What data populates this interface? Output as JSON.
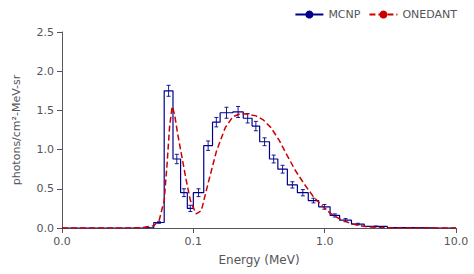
{
  "chart_data": {
    "type": "line",
    "xlabel": "Energy (MeV)",
    "ylabel": "photons/cm²-MeV-sr",
    "log": "x",
    "xlim": [
      0.01,
      10.0
    ],
    "ylim": [
      0.0,
      2.5
    ],
    "xticks": [
      {
        "value": 0.01,
        "label": "0.0"
      },
      0.1,
      {
        "value": 1.0,
        "label": "1.0"
      },
      {
        "value": 10.0,
        "label": "10.0"
      }
    ],
    "yticks": [
      {
        "value": 0.0,
        "label": "0.0"
      },
      0.5,
      {
        "value": 1.0,
        "label": "1.0"
      },
      1.5,
      {
        "value": 2.0,
        "label": "2.0"
      },
      2.5
    ],
    "grid": false,
    "legend": "upper right",
    "series": [
      {
        "name": "MCNP",
        "type": "histogram",
        "color": "#00008B",
        "line_style": "solid",
        "bins": [
          0.01,
          0.02,
          0.03,
          0.04,
          0.05,
          0.06,
          0.07,
          0.08,
          0.09,
          0.1,
          0.12,
          0.14,
          0.16,
          0.2,
          0.24,
          0.28,
          0.32,
          0.38,
          0.44,
          0.52,
          0.62,
          0.75,
          0.9,
          1.1,
          1.3,
          1.6,
          2.0,
          3.0,
          5.0,
          7.0,
          10.0
        ],
        "values": [
          0.0,
          0.0,
          0.0,
          0.005,
          0.07,
          1.75,
          0.88,
          0.45,
          0.25,
          0.45,
          1.05,
          1.35,
          1.47,
          1.48,
          1.4,
          1.3,
          1.1,
          0.88,
          0.75,
          0.55,
          0.45,
          0.35,
          0.27,
          0.16,
          0.1,
          0.05,
          0.02,
          0.005,
          0.001,
          0.0
        ],
        "yerr": [
          0.0,
          0.0,
          0.0,
          0.003,
          0.01,
          0.07,
          0.06,
          0.05,
          0.04,
          0.05,
          0.06,
          0.06,
          0.07,
          0.07,
          0.06,
          0.06,
          0.05,
          0.05,
          0.05,
          0.04,
          0.04,
          0.03,
          0.03,
          0.02,
          0.02,
          0.01,
          0.005,
          0.002,
          0.001,
          0.0
        ]
      },
      {
        "name": "ONEDANT",
        "type": "line",
        "color": "#CC0000",
        "line_style": "dashed",
        "x": [
          0.01,
          0.02,
          0.03,
          0.04,
          0.05,
          0.055,
          0.06,
          0.063,
          0.066,
          0.069,
          0.072,
          0.076,
          0.082,
          0.088,
          0.095,
          0.105,
          0.115,
          0.13,
          0.15,
          0.175,
          0.2,
          0.23,
          0.26,
          0.3,
          0.34,
          0.39,
          0.45,
          0.52,
          0.6,
          0.7,
          0.82,
          0.96,
          1.1,
          1.3,
          1.55,
          1.85,
          2.2,
          2.8,
          3.5,
          5.0,
          8.0,
          10.0
        ],
        "values": [
          0.0,
          0.0,
          0.0,
          0.003,
          0.03,
          0.1,
          0.35,
          0.8,
          1.3,
          1.55,
          1.45,
          1.2,
          0.9,
          0.62,
          0.35,
          0.18,
          0.22,
          0.58,
          0.98,
          1.28,
          1.42,
          1.46,
          1.45,
          1.43,
          1.38,
          1.28,
          1.12,
          0.92,
          0.73,
          0.56,
          0.4,
          0.28,
          0.19,
          0.115,
          0.062,
          0.03,
          0.012,
          0.004,
          0.001,
          0.0,
          0.0,
          0.0
        ]
      }
    ]
  }
}
